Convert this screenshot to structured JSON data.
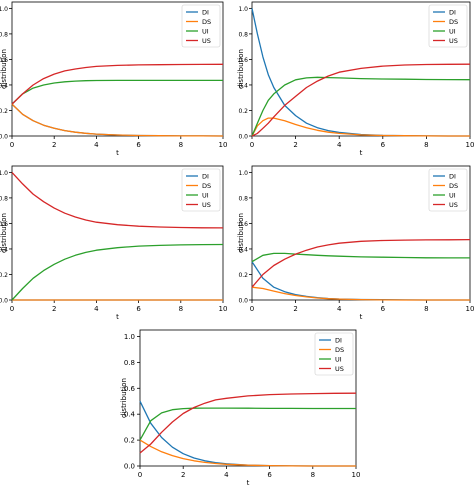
{
  "chart_data": [
    {
      "type": "line",
      "title": "",
      "xlabel": "t",
      "ylabel": "distribution",
      "xlim": [
        0,
        10
      ],
      "ylim": [
        0,
        1.05
      ],
      "x_ticks": [
        "0",
        "2",
        "4",
        "6",
        "8",
        "10"
      ],
      "y_ticks": [
        "0.0",
        "0.2",
        "0.4",
        "0.6",
        "0.8",
        "1.0"
      ],
      "legend_position": "top-right",
      "grid": false,
      "x": [
        0,
        0.5,
        1,
        1.5,
        2,
        2.5,
        3,
        3.5,
        4,
        5,
        6,
        7,
        8,
        9,
        10
      ],
      "series": [
        {
          "name": "DI",
          "color": "#1f77b4",
          "values": [
            0.25,
            0.17,
            0.12,
            0.085,
            0.06,
            0.042,
            0.03,
            0.021,
            0.015,
            0.008,
            0.004,
            0.002,
            0.001,
            0.001,
            0.0
          ]
        },
        {
          "name": "DS",
          "color": "#ff7f0e",
          "values": [
            0.25,
            0.17,
            0.12,
            0.085,
            0.06,
            0.042,
            0.03,
            0.021,
            0.015,
            0.008,
            0.004,
            0.002,
            0.001,
            0.001,
            0.0
          ]
        },
        {
          "name": "UI",
          "color": "#2ca02c",
          "values": [
            0.25,
            0.33,
            0.375,
            0.4,
            0.415,
            0.425,
            0.43,
            0.433,
            0.435,
            0.436,
            0.436,
            0.436,
            0.436,
            0.436,
            0.436
          ]
        },
        {
          "name": "US",
          "color": "#d62728",
          "values": [
            0.25,
            0.33,
            0.4,
            0.45,
            0.485,
            0.51,
            0.525,
            0.537,
            0.545,
            0.553,
            0.557,
            0.559,
            0.56,
            0.561,
            0.562
          ]
        }
      ]
    },
    {
      "type": "line",
      "title": "",
      "xlabel": "t",
      "ylabel": "distribution",
      "xlim": [
        0,
        10
      ],
      "ylim": [
        0,
        1.05
      ],
      "x_ticks": [
        "0",
        "2",
        "4",
        "6",
        "8",
        "10"
      ],
      "y_ticks": [
        "0.0",
        "0.2",
        "0.4",
        "0.6",
        "0.8",
        "1.0"
      ],
      "legend_position": "top-right",
      "grid": false,
      "x": [
        0,
        0.25,
        0.5,
        0.75,
        1,
        1.5,
        2,
        2.5,
        3,
        3.5,
        4,
        5,
        6,
        7,
        8,
        9,
        10
      ],
      "series": [
        {
          "name": "DI",
          "color": "#1f77b4",
          "values": [
            1.0,
            0.8,
            0.62,
            0.48,
            0.38,
            0.24,
            0.16,
            0.1,
            0.065,
            0.042,
            0.028,
            0.012,
            0.005,
            0.002,
            0.001,
            0.0,
            0.0
          ]
        },
        {
          "name": "DS",
          "color": "#ff7f0e",
          "values": [
            0.0,
            0.08,
            0.12,
            0.14,
            0.14,
            0.12,
            0.09,
            0.065,
            0.045,
            0.03,
            0.02,
            0.009,
            0.004,
            0.002,
            0.001,
            0.0,
            0.0
          ]
        },
        {
          "name": "UI",
          "color": "#2ca02c",
          "values": [
            0.0,
            0.1,
            0.2,
            0.28,
            0.33,
            0.4,
            0.44,
            0.455,
            0.46,
            0.458,
            0.455,
            0.45,
            0.447,
            0.445,
            0.443,
            0.442,
            0.441
          ]
        },
        {
          "name": "US",
          "color": "#d62728",
          "values": [
            0.0,
            0.02,
            0.06,
            0.1,
            0.15,
            0.24,
            0.31,
            0.38,
            0.43,
            0.47,
            0.5,
            0.53,
            0.548,
            0.556,
            0.56,
            0.562,
            0.563
          ]
        }
      ]
    },
    {
      "type": "line",
      "title": "",
      "xlabel": "t",
      "ylabel": "distribution",
      "xlim": [
        0,
        10
      ],
      "ylim": [
        0,
        1.05
      ],
      "x_ticks": [
        "0",
        "2",
        "4",
        "6",
        "8",
        "10"
      ],
      "y_ticks": [
        "0.0",
        "0.2",
        "0.4",
        "0.6",
        "0.8",
        "1.0"
      ],
      "legend_position": "top-right",
      "grid": false,
      "x": [
        0,
        0.5,
        1,
        1.5,
        2,
        2.5,
        3,
        3.5,
        4,
        5,
        6,
        7,
        8,
        9,
        10
      ],
      "series": [
        {
          "name": "DI",
          "color": "#1f77b4",
          "values": [
            0,
            0,
            0,
            0,
            0,
            0,
            0,
            0,
            0,
            0,
            0,
            0,
            0,
            0,
            0
          ]
        },
        {
          "name": "DS",
          "color": "#ff7f0e",
          "values": [
            0,
            0,
            0,
            0,
            0,
            0,
            0,
            0,
            0,
            0,
            0,
            0,
            0,
            0,
            0
          ]
        },
        {
          "name": "UI",
          "color": "#2ca02c",
          "values": [
            0.0,
            0.09,
            0.17,
            0.23,
            0.28,
            0.32,
            0.35,
            0.373,
            0.39,
            0.41,
            0.422,
            0.428,
            0.432,
            0.434,
            0.435
          ]
        },
        {
          "name": "US",
          "color": "#d62728",
          "values": [
            1.0,
            0.91,
            0.83,
            0.77,
            0.72,
            0.68,
            0.65,
            0.627,
            0.61,
            0.59,
            0.578,
            0.572,
            0.568,
            0.566,
            0.565
          ]
        }
      ]
    },
    {
      "type": "line",
      "title": "",
      "xlabel": "t",
      "ylabel": "distribution",
      "xlim": [
        0,
        10
      ],
      "ylim": [
        0,
        1.05
      ],
      "x_ticks": [
        "0",
        "2",
        "4",
        "6",
        "8",
        "10"
      ],
      "y_ticks": [
        "0.0",
        "0.2",
        "0.4",
        "0.6",
        "0.8",
        "1.0"
      ],
      "legend_position": "top-right",
      "grid": false,
      "x": [
        0,
        0.5,
        1,
        1.5,
        2,
        2.5,
        3,
        3.5,
        4,
        5,
        6,
        7,
        8,
        9,
        10
      ],
      "series": [
        {
          "name": "DI",
          "color": "#1f77b4",
          "values": [
            0.3,
            0.17,
            0.1,
            0.065,
            0.042,
            0.028,
            0.018,
            0.012,
            0.008,
            0.004,
            0.002,
            0.001,
            0.0,
            0.0,
            0.0
          ]
        },
        {
          "name": "DS",
          "color": "#ff7f0e",
          "values": [
            0.1,
            0.09,
            0.07,
            0.05,
            0.035,
            0.024,
            0.016,
            0.01,
            0.007,
            0.003,
            0.001,
            0.0,
            0.0,
            0.0,
            0.0
          ]
        },
        {
          "name": "UI",
          "color": "#2ca02c",
          "values": [
            0.3,
            0.35,
            0.365,
            0.365,
            0.36,
            0.355,
            0.35,
            0.346,
            0.343,
            0.338,
            0.335,
            0.333,
            0.331,
            0.33,
            0.33
          ]
        },
        {
          "name": "US",
          "color": "#d62728",
          "values": [
            0.1,
            0.2,
            0.27,
            0.32,
            0.36,
            0.39,
            0.415,
            0.432,
            0.445,
            0.46,
            0.466,
            0.469,
            0.471,
            0.472,
            0.473
          ]
        }
      ]
    },
    {
      "type": "line",
      "title": "",
      "xlabel": "t",
      "ylabel": "distribution",
      "xlim": [
        0,
        10
      ],
      "ylim": [
        0,
        1.05
      ],
      "x_ticks": [
        "0",
        "2",
        "4",
        "6",
        "8",
        "10"
      ],
      "y_ticks": [
        "0.0",
        "0.2",
        "0.4",
        "0.6",
        "0.8",
        "1.0"
      ],
      "legend_position": "top-right",
      "grid": false,
      "x": [
        0,
        0.5,
        1,
        1.5,
        2,
        2.5,
        3,
        3.5,
        4,
        5,
        6,
        7,
        8,
        9,
        10
      ],
      "series": [
        {
          "name": "DI",
          "color": "#1f77b4",
          "values": [
            0.5,
            0.33,
            0.22,
            0.145,
            0.095,
            0.062,
            0.04,
            0.026,
            0.017,
            0.007,
            0.003,
            0.001,
            0.0,
            0.0,
            0.0
          ]
        },
        {
          "name": "DS",
          "color": "#ff7f0e",
          "values": [
            0.2,
            0.15,
            0.11,
            0.08,
            0.057,
            0.04,
            0.028,
            0.019,
            0.013,
            0.006,
            0.003,
            0.001,
            0.0,
            0.0,
            0.0
          ]
        },
        {
          "name": "UI",
          "color": "#2ca02c",
          "values": [
            0.2,
            0.35,
            0.41,
            0.435,
            0.443,
            0.446,
            0.447,
            0.447,
            0.447,
            0.446,
            0.445,
            0.445,
            0.444,
            0.444,
            0.444
          ]
        },
        {
          "name": "US",
          "color": "#d62728",
          "values": [
            0.1,
            0.17,
            0.26,
            0.34,
            0.405,
            0.452,
            0.485,
            0.51,
            0.523,
            0.541,
            0.551,
            0.556,
            0.559,
            0.561,
            0.562
          ]
        }
      ]
    }
  ]
}
